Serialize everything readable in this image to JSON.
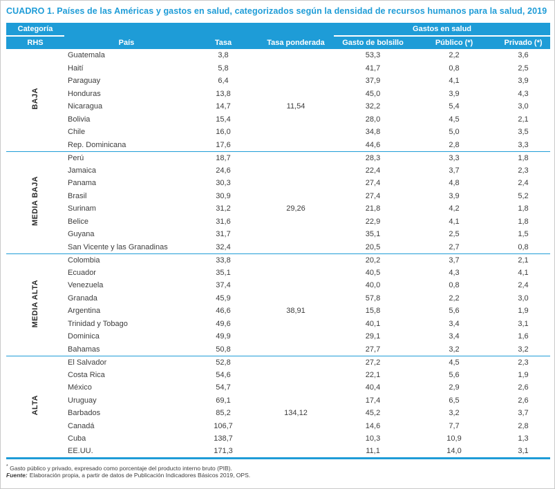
{
  "title": "CUADRO 1. Países de las Américas y gastos en salud, categorizados según la densidad de recursos humanos para la salud, 2019",
  "colors": {
    "accent_blue": "#1e9cd7",
    "body_text": "#3c3c3c"
  },
  "table": {
    "header": {
      "category_top": "Categoría",
      "category_bottom": "RHS",
      "pais": "País",
      "tasa": "Tasa",
      "tasa_ponderada": "Tasa ponderada",
      "gastos_group": "Gastos en salud",
      "gasto_bolsillo": "Gasto de bolsillo",
      "publico": "Público (*)",
      "privado": "Privado (*)"
    },
    "groups": [
      {
        "label": "BAJA",
        "rows": [
          {
            "pais": "Guatemala",
            "tasa": "3,8",
            "ponderada": "",
            "bolsillo": "53,3",
            "publico": "2,2",
            "privado": "3,6"
          },
          {
            "pais": "Haití",
            "tasa": "5,8",
            "ponderada": "",
            "bolsillo": "41,7",
            "publico": "0,8",
            "privado": "2,5"
          },
          {
            "pais": "Paraguay",
            "tasa": "6,4",
            "ponderada": "",
            "bolsillo": "37,9",
            "publico": "4,1",
            "privado": "3,9"
          },
          {
            "pais": "Honduras",
            "tasa": "13,8",
            "ponderada": "",
            "bolsillo": "45,0",
            "publico": "3,9",
            "privado": "4,3"
          },
          {
            "pais": "Nicaragua",
            "tasa": "14,7",
            "ponderada": "11,54",
            "bolsillo": "32,2",
            "publico": "5,4",
            "privado": "3,0"
          },
          {
            "pais": "Bolivia",
            "tasa": "15,4",
            "ponderada": "",
            "bolsillo": "28,0",
            "publico": "4,5",
            "privado": "2,1"
          },
          {
            "pais": "Chile",
            "tasa": "16,0",
            "ponderada": "",
            "bolsillo": "34,8",
            "publico": "5,0",
            "privado": "3,5"
          },
          {
            "pais": "Rep. Dominicana",
            "tasa": "17,6",
            "ponderada": "",
            "bolsillo": "44,6",
            "publico": "2,8",
            "privado": "3,3"
          }
        ]
      },
      {
        "label": "MEDIA BAJA",
        "rows": [
          {
            "pais": "Perú",
            "tasa": "18,7",
            "ponderada": "",
            "bolsillo": "28,3",
            "publico": "3,3",
            "privado": "1,8"
          },
          {
            "pais": "Jamaica",
            "tasa": "24,6",
            "ponderada": "",
            "bolsillo": "22,4",
            "publico": "3,7",
            "privado": "2,3"
          },
          {
            "pais": "Panama",
            "tasa": "30,3",
            "ponderada": "",
            "bolsillo": "27,4",
            "publico": "4,8",
            "privado": "2,4"
          },
          {
            "pais": "Brasil",
            "tasa": "30,9",
            "ponderada": "",
            "bolsillo": "27,4",
            "publico": "3,9",
            "privado": "5,2"
          },
          {
            "pais": "Surinam",
            "tasa": "31,2",
            "ponderada": "29,26",
            "bolsillo": "21,8",
            "publico": "4,2",
            "privado": "1,8"
          },
          {
            "pais": "Belice",
            "tasa": "31,6",
            "ponderada": "",
            "bolsillo": "22,9",
            "publico": "4,1",
            "privado": "1,8"
          },
          {
            "pais": "Guyana",
            "tasa": "31,7",
            "ponderada": "",
            "bolsillo": "35,1",
            "publico": "2,5",
            "privado": "1,5"
          },
          {
            "pais": "San Vicente y las Granadinas",
            "tasa": "32,4",
            "ponderada": "",
            "bolsillo": "20,5",
            "publico": "2,7",
            "privado": "0,8"
          }
        ]
      },
      {
        "label": "MEDIA ALTA",
        "rows": [
          {
            "pais": "Colombia",
            "tasa": "33,8",
            "ponderada": "",
            "bolsillo": "20,2",
            "publico": "3,7",
            "privado": "2,1"
          },
          {
            "pais": "Ecuador",
            "tasa": "35,1",
            "ponderada": "",
            "bolsillo": "40,5",
            "publico": "4,3",
            "privado": "4,1"
          },
          {
            "pais": "Venezuela",
            "tasa": "37,4",
            "ponderada": "",
            "bolsillo": "40,0",
            "publico": "0,8",
            "privado": "2,4"
          },
          {
            "pais": "Granada",
            "tasa": "45,9",
            "ponderada": "",
            "bolsillo": "57,8",
            "publico": "2,2",
            "privado": "3,0"
          },
          {
            "pais": "Argentina",
            "tasa": "46,6",
            "ponderada": "38,91",
            "bolsillo": "15,8",
            "publico": "5,6",
            "privado": "1,9"
          },
          {
            "pais": "Trinidad y Tobago",
            "tasa": "49,6",
            "ponderada": "",
            "bolsillo": "40,1",
            "publico": "3,4",
            "privado": "3,1"
          },
          {
            "pais": "Dominica",
            "tasa": "49,9",
            "ponderada": "",
            "bolsillo": "29,1",
            "publico": "3,4",
            "privado": "1,6"
          },
          {
            "pais": "Bahamas",
            "tasa": "50,8",
            "ponderada": "",
            "bolsillo": "27,7",
            "publico": "3,2",
            "privado": "3,2"
          }
        ]
      },
      {
        "label": "ALTA",
        "rows": [
          {
            "pais": "El Salvador",
            "tasa": "52,8",
            "ponderada": "",
            "bolsillo": "27,2",
            "publico": "4,5",
            "privado": "2,3"
          },
          {
            "pais": "Costa Rica",
            "tasa": "54,6",
            "ponderada": "",
            "bolsillo": "22,1",
            "publico": "5,6",
            "privado": "1,9"
          },
          {
            "pais": "México",
            "tasa": "54,7",
            "ponderada": "",
            "bolsillo": "40,4",
            "publico": "2,9",
            "privado": "2,6"
          },
          {
            "pais": "Uruguay",
            "tasa": "69,1",
            "ponderada": "",
            "bolsillo": "17,4",
            "publico": "6,5",
            "privado": "2,6"
          },
          {
            "pais": "Barbados",
            "tasa": "85,2",
            "ponderada": "134,12",
            "bolsillo": "45,2",
            "publico": "3,2",
            "privado": "3,7"
          },
          {
            "pais": "Canadá",
            "tasa": "106,7",
            "ponderada": "",
            "bolsillo": "14,6",
            "publico": "7,7",
            "privado": "2,8"
          },
          {
            "pais": "Cuba",
            "tasa": "138,7",
            "ponderada": "",
            "bolsillo": "10,3",
            "publico": "10,9",
            "privado": "1,3"
          },
          {
            "pais": "EE.UU.",
            "tasa": "171,3",
            "ponderada": "",
            "bolsillo": "11,1",
            "publico": "14,0",
            "privado": "3,1"
          }
        ]
      }
    ]
  },
  "footnotes": {
    "note_marker": "*",
    "note": "Gasto público y privado, expresado como porcentaje del producto interno bruto (PIB).",
    "fuente_label": "Fuente:",
    "fuente_text": "Elaboración propia, a partir de datos de Publicación Indicadores Básicos 2019, OPS."
  }
}
